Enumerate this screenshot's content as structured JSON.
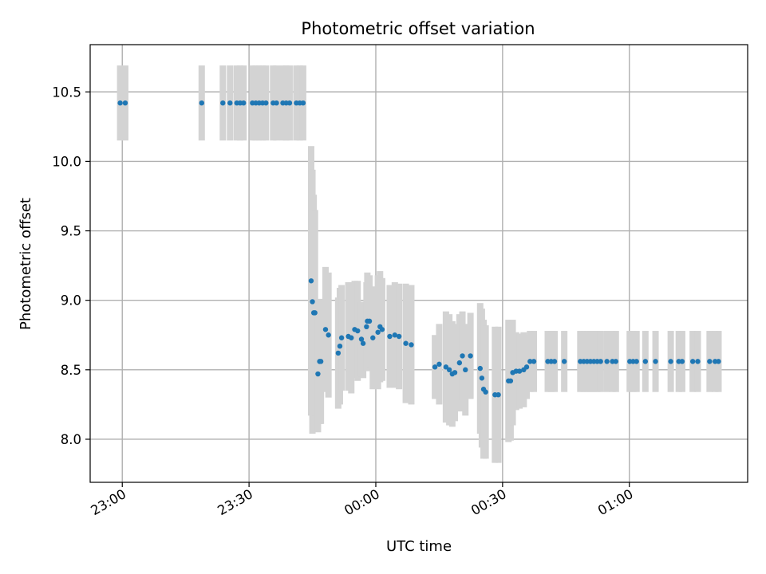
{
  "chart_data": {
    "type": "scatter",
    "title": "Photometric offset variation",
    "xlabel": "UTC time",
    "ylabel": "Photometric offset",
    "x_unit": "minutes",
    "x_ticks": [
      {
        "value": 0,
        "label": "23:00"
      },
      {
        "value": 30,
        "label": "23:30"
      },
      {
        "value": 60,
        "label": "00:00"
      },
      {
        "value": 90,
        "label": "00:30"
      },
      {
        "value": 120,
        "label": "01:00"
      }
    ],
    "xlim": [
      -7.6,
      148.0
    ],
    "ylim": [
      7.69,
      10.84
    ],
    "y_ticks": [
      {
        "value": 8.0,
        "label": "8.0"
      },
      {
        "value": 8.5,
        "label": "8.5"
      },
      {
        "value": 9.0,
        "label": "9.0"
      },
      {
        "value": 9.5,
        "label": "9.5"
      },
      {
        "value": 10.0,
        "label": "10.0"
      },
      {
        "value": 10.5,
        "label": "10.5"
      }
    ],
    "grid": true,
    "colors": {
      "points": "#1f77b4",
      "error_bars": "#d3d3d3",
      "grid": "#b0b0b0"
    },
    "points": [
      [
        -0.5,
        10.42,
        0.27
      ],
      [
        0.7,
        10.42,
        0.27
      ],
      [
        18.8,
        10.42,
        0.27
      ],
      [
        23.8,
        10.42,
        0.27
      ],
      [
        25.5,
        10.42,
        0.27
      ],
      [
        27.1,
        10.42,
        0.27
      ],
      [
        27.9,
        10.42,
        0.27
      ],
      [
        28.7,
        10.42,
        0.27
      ],
      [
        30.8,
        10.42,
        0.27
      ],
      [
        31.6,
        10.42,
        0.27
      ],
      [
        32.4,
        10.42,
        0.27
      ],
      [
        33.2,
        10.42,
        0.27
      ],
      [
        34.0,
        10.42,
        0.27
      ],
      [
        35.7,
        10.42,
        0.27
      ],
      [
        36.5,
        10.42,
        0.27
      ],
      [
        38.0,
        10.42,
        0.27
      ],
      [
        38.8,
        10.42,
        0.27
      ],
      [
        39.6,
        10.42,
        0.27
      ],
      [
        41.2,
        10.42,
        0.27
      ],
      [
        42.0,
        10.42,
        0.27
      ],
      [
        42.8,
        10.42,
        0.27
      ],
      [
        44.7,
        9.14,
        0.97
      ],
      [
        45.0,
        8.99,
        0.95
      ],
      [
        45.3,
        8.91,
        0.85
      ],
      [
        45.6,
        8.91,
        0.74
      ],
      [
        46.3,
        8.47,
        0.42
      ],
      [
        46.7,
        8.56,
        0.45
      ],
      [
        47.0,
        8.56,
        0.45
      ],
      [
        48.1,
        8.79,
        0.45
      ],
      [
        48.8,
        8.75,
        0.45
      ],
      [
        51.1,
        8.62,
        0.4
      ],
      [
        51.5,
        8.67,
        0.42
      ],
      [
        51.9,
        8.73,
        0.38
      ],
      [
        53.5,
        8.74,
        0.39
      ],
      [
        54.2,
        8.73,
        0.4
      ],
      [
        55.0,
        8.79,
        0.35
      ],
      [
        55.7,
        8.78,
        0.36
      ],
      [
        56.6,
        8.72,
        0.27
      ],
      [
        57.0,
        8.69,
        0.25
      ],
      [
        57.8,
        8.81,
        0.32
      ],
      [
        58.0,
        8.85,
        0.35
      ],
      [
        58.5,
        8.85,
        0.33
      ],
      [
        59.3,
        8.73,
        0.37
      ],
      [
        60.5,
        8.77,
        0.41
      ],
      [
        61.0,
        8.81,
        0.4
      ],
      [
        61.5,
        8.79,
        0.37
      ],
      [
        63.3,
        8.74,
        0.37
      ],
      [
        64.5,
        8.75,
        0.38
      ],
      [
        65.5,
        8.74,
        0.38
      ],
      [
        67.1,
        8.69,
        0.43
      ],
      [
        68.4,
        8.68,
        0.43
      ],
      [
        74.0,
        8.52,
        0.23
      ],
      [
        75.0,
        8.54,
        0.29
      ],
      [
        76.6,
        8.52,
        0.4
      ],
      [
        77.4,
        8.5,
        0.4
      ],
      [
        78.1,
        8.47,
        0.38
      ],
      [
        78.7,
        8.48,
        0.35
      ],
      [
        79.8,
        8.55,
        0.35
      ],
      [
        80.5,
        8.6,
        0.32
      ],
      [
        81.2,
        8.5,
        0.33
      ],
      [
        82.4,
        8.6,
        0.31
      ],
      [
        84.7,
        8.51,
        0.47
      ],
      [
        85.1,
        8.44,
        0.5
      ],
      [
        85.5,
        8.36,
        0.5
      ],
      [
        86.0,
        8.34,
        0.48
      ],
      [
        88.2,
        8.32,
        0.49
      ],
      [
        89.0,
        8.32,
        0.49
      ],
      [
        91.4,
        8.42,
        0.44
      ],
      [
        91.9,
        8.42,
        0.43
      ],
      [
        92.4,
        8.48,
        0.38
      ],
      [
        93.2,
        8.49,
        0.28
      ],
      [
        94.0,
        8.49,
        0.27
      ],
      [
        95.0,
        8.5,
        0.27
      ],
      [
        95.7,
        8.52,
        0.23
      ],
      [
        96.5,
        8.56,
        0.22
      ],
      [
        97.4,
        8.56,
        0.22
      ],
      [
        100.7,
        8.56,
        0.22
      ],
      [
        101.5,
        8.56,
        0.22
      ],
      [
        102.3,
        8.56,
        0.22
      ],
      [
        104.6,
        8.56,
        0.22
      ],
      [
        108.4,
        8.56,
        0.22
      ],
      [
        109.2,
        8.56,
        0.22
      ],
      [
        110.0,
        8.56,
        0.22
      ],
      [
        110.8,
        8.56,
        0.22
      ],
      [
        111.6,
        8.56,
        0.22
      ],
      [
        112.4,
        8.56,
        0.22
      ],
      [
        113.2,
        8.56,
        0.22
      ],
      [
        114.7,
        8.56,
        0.22
      ],
      [
        116.0,
        8.56,
        0.22
      ],
      [
        116.8,
        8.56,
        0.22
      ],
      [
        120.1,
        8.56,
        0.22
      ],
      [
        120.9,
        8.56,
        0.22
      ],
      [
        121.7,
        8.56,
        0.22
      ],
      [
        123.8,
        8.56,
        0.22
      ],
      [
        126.2,
        8.56,
        0.22
      ],
      [
        129.8,
        8.56,
        0.22
      ],
      [
        131.7,
        8.56,
        0.22
      ],
      [
        132.5,
        8.56,
        0.22
      ],
      [
        135.0,
        8.56,
        0.22
      ],
      [
        136.2,
        8.56,
        0.22
      ],
      [
        139.0,
        8.56,
        0.22
      ],
      [
        140.3,
        8.56,
        0.22
      ],
      [
        141.1,
        8.56,
        0.22
      ]
    ]
  }
}
